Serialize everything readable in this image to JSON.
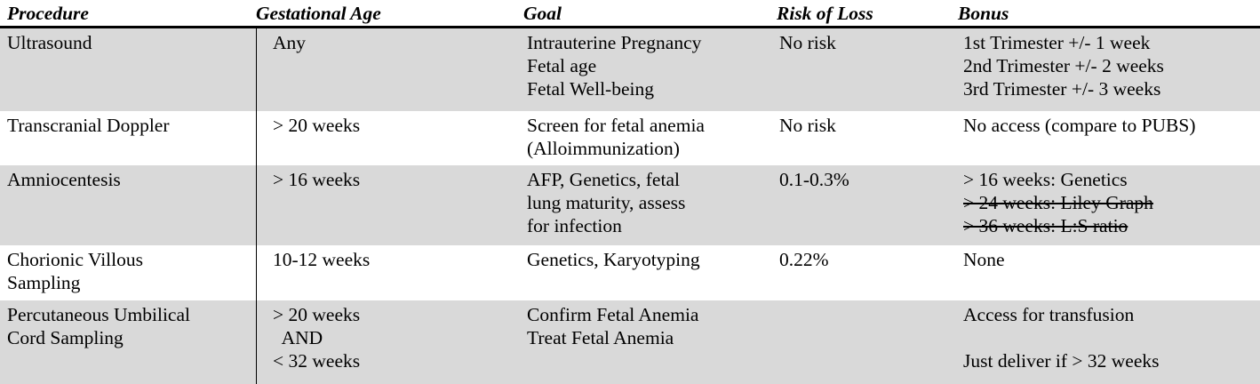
{
  "headers": {
    "procedure": "Procedure",
    "gestational_age": "Gestational Age",
    "goal": "Goal",
    "risk": "Risk of Loss",
    "bonus": "Bonus"
  },
  "rows": [
    {
      "procedure": [
        "Ultrasound"
      ],
      "gestational_age": [
        "Any"
      ],
      "goal": [
        "Intrauterine Pregnancy",
        "Fetal age",
        "Fetal Well-being"
      ],
      "risk": [
        "No risk"
      ],
      "bonus": [
        {
          "text": "1st Trimester +/- 1 week"
        },
        {
          "text": "2nd Trimester +/- 2 weeks"
        },
        {
          "text": "3rd Trimester +/- 3 weeks"
        }
      ]
    },
    {
      "procedure": [
        "Transcranial Doppler"
      ],
      "gestational_age": [
        "> 20 weeks"
      ],
      "goal": [
        "Screen for fetal anemia",
        "(Alloimmunization)"
      ],
      "risk": [
        "No risk"
      ],
      "bonus": [
        {
          "text": "No access (compare to PUBS)"
        }
      ]
    },
    {
      "procedure": [
        "Amniocentesis"
      ],
      "gestational_age": [
        "> 16 weeks"
      ],
      "goal": [
        "AFP, Genetics, fetal",
        "lung maturity, assess",
        "for infection"
      ],
      "risk": [
        "0.1-0.3%"
      ],
      "bonus": [
        {
          "text": "> 16 weeks: Genetics"
        },
        {
          "text": "> 24 weeks: Liley Graph",
          "strike": true
        },
        {
          "text": "> 36 weeks: L:S ratio",
          "strike": true
        }
      ]
    },
    {
      "procedure": [
        "Chorionic Villous",
        "Sampling"
      ],
      "gestational_age": [
        "10-12 weeks"
      ],
      "goal": [
        "Genetics, Karyotyping"
      ],
      "risk": [
        "0.22%"
      ],
      "bonus": [
        {
          "text": "None"
        }
      ]
    },
    {
      "procedure": [
        "Percutaneous Umbilical",
        "Cord Sampling"
      ],
      "gestational_age": [
        "> 20 weeks",
        "  AND",
        "< 32 weeks"
      ],
      "goal": [
        "Confirm Fetal Anemia",
        "Treat Fetal Anemia"
      ],
      "risk": [],
      "bonus": [
        {
          "text": "Access for transfusion"
        },
        {
          "text": ""
        },
        {
          "text": "Just deliver if > 32 weeks"
        }
      ]
    }
  ]
}
